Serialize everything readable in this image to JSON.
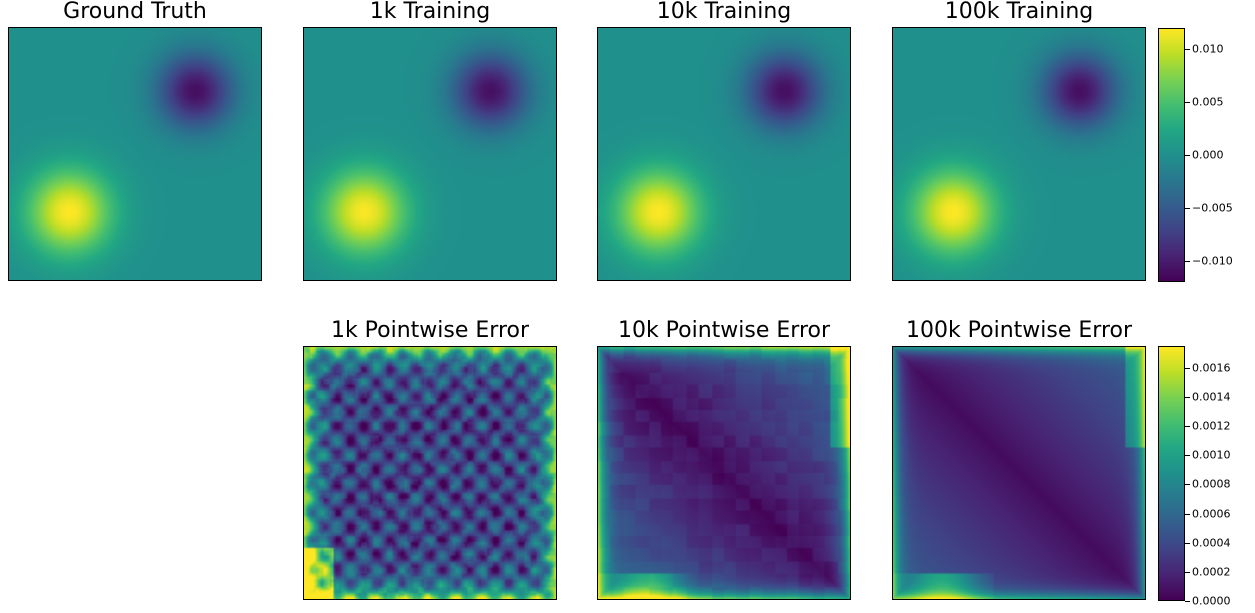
{
  "chart_data": {
    "type": "heatmap",
    "panels": [
      {
        "title": "Ground Truth",
        "kind": "field",
        "variant": 0
      },
      {
        "title": "1k Training",
        "kind": "field",
        "variant": 1
      },
      {
        "title": "10k Training",
        "kind": "field",
        "variant": 2
      },
      {
        "title": "100k Training",
        "kind": "field",
        "variant": 3
      },
      {
        "title": "1k Pointwise Error",
        "kind": "error",
        "variant": 1
      },
      {
        "title": "10k Pointwise Error",
        "kind": "error",
        "variant": 2
      },
      {
        "title": "100k Pointwise Error",
        "kind": "error",
        "variant": 3
      }
    ],
    "field_colorbar": {
      "vmin": -0.012,
      "vmax": 0.012,
      "ticks": [
        "0.010",
        "0.005",
        "0.000",
        "−0.005",
        "−0.010"
      ],
      "tick_values": [
        0.01,
        0.005,
        0.0,
        -0.005,
        -0.01
      ]
    },
    "error_colorbar": {
      "vmin": 0.0,
      "vmax": 0.00175,
      "ticks": [
        "0.0016",
        "0.0014",
        "0.0012",
        "0.0010",
        "0.0008",
        "0.0006",
        "0.0004",
        "0.0002",
        "0.0000"
      ],
      "tick_values": [
        0.0016,
        0.0014,
        0.0012,
        0.001,
        0.0008,
        0.0006,
        0.0004,
        0.0002,
        0.0
      ]
    },
    "field_peaks": {
      "max": 0.012,
      "min": -0.011
    },
    "colormap": "viridis"
  }
}
